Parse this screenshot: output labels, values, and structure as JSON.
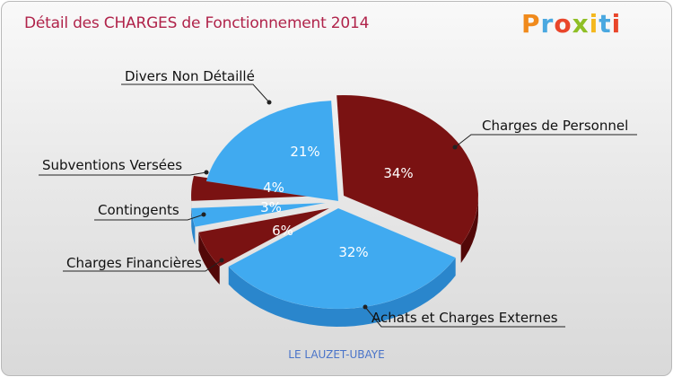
{
  "title": "Détail des CHARGES de Fonctionnement 2014",
  "brand": {
    "letters": [
      "P",
      "r",
      "o",
      "x",
      "i",
      "t",
      "i"
    ],
    "colors": [
      "#f08a1c",
      "#4aa8e0",
      "#e9462b",
      "#8fbf26",
      "#f4b81e",
      "#4aa8e0",
      "#e9462b"
    ]
  },
  "footer": "LE LAUZET-UBAYE",
  "colors": {
    "dark_red": "#7a1212",
    "dark_red_side": "#520808",
    "light_blue": "#40aaf0",
    "light_blue_side": "#2a86cc"
  },
  "chart_data": {
    "type": "pie",
    "title": "Détail des CHARGES de Fonctionnement 2014",
    "slices": [
      {
        "label": "Charges de Personnel",
        "value": 34,
        "pct_label": "34%",
        "color": "#7a1212"
      },
      {
        "label": "Achats et Charges Externes",
        "value": 32,
        "pct_label": "32%",
        "color": "#40aaf0"
      },
      {
        "label": "Charges Financières",
        "value": 6,
        "pct_label": "6%",
        "color": "#7a1212"
      },
      {
        "label": "Contingents",
        "value": 3,
        "pct_label": "3%",
        "color": "#40aaf0"
      },
      {
        "label": "Subventions Versées",
        "value": 4,
        "pct_label": "4%",
        "color": "#7a1212"
      },
      {
        "label": "Divers Non Détaillé",
        "value": 21,
        "pct_label": "21%",
        "color": "#40aaf0"
      }
    ]
  }
}
